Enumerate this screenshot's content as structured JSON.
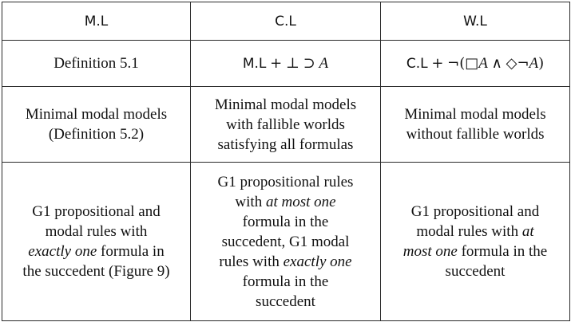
{
  "header": {
    "col1": "M.L",
    "col2": "C.L",
    "col3": "W.L"
  },
  "definition_row": {
    "col1": "Definition 5.1",
    "col2": {
      "system": "M.L",
      "plus": "+",
      "bottom": "⊥",
      "implies": "⊃",
      "var": "A"
    },
    "col3": {
      "system": "C.L",
      "plus": "+",
      "neg_open": "¬(",
      "box": "□",
      "var1": "A",
      "and": "∧",
      "diamond": "◇",
      "neg": "¬",
      "var2": "A",
      "close": ")"
    }
  },
  "semantics_row": {
    "col1": [
      "Minimal modal models",
      "(Definition 5.2)"
    ],
    "col2": [
      "Minimal modal models",
      "with fallible worlds",
      "satisfying all formulas"
    ],
    "col3": [
      "Minimal modal models",
      "without fallible worlds"
    ]
  },
  "rules_row": {
    "col1": {
      "line1": "G1 propositional and",
      "line2": "modal rules with",
      "line3_em": "exactly one",
      "line3_rest": " formula in",
      "line4": "the succedent (Figure 9)"
    },
    "col2": {
      "line1": "G1 propositional rules",
      "line2_pre": "with ",
      "line2_em": "at most one",
      "line3": "formula in the",
      "line4": "succedent, G1 modal",
      "line5_pre": "rules with ",
      "line5_em": "exactly one",
      "line6": "formula in the",
      "line7": "succedent"
    },
    "col3": {
      "line1": "G1 propositional and",
      "line2_pre": "modal rules with ",
      "line2_em": "at",
      "line3_em": "most one",
      "line3_rest": " formula in the",
      "line4": "succedent"
    }
  }
}
